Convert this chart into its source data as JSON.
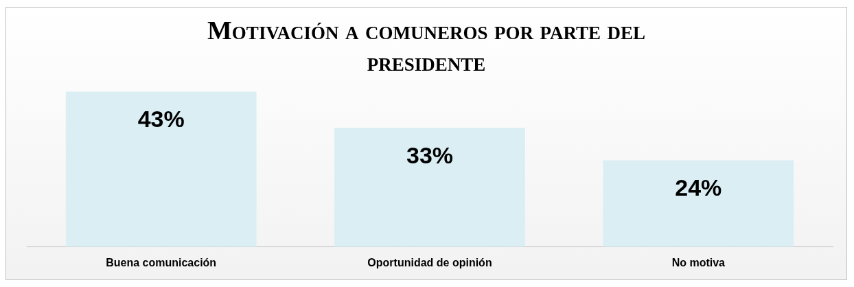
{
  "chart_data": {
    "type": "bar",
    "title": "Motivación a comuneros por parte del presidente",
    "categories": [
      "Buena comunicación",
      "Oportunidad de opinión",
      "No motiva"
    ],
    "values": [
      43,
      33,
      24
    ],
    "value_labels": [
      "43%",
      "33%",
      "24%"
    ],
    "color": "#daeef3",
    "tick_labels": "x",
    "grid": false,
    "legend": false
  }
}
